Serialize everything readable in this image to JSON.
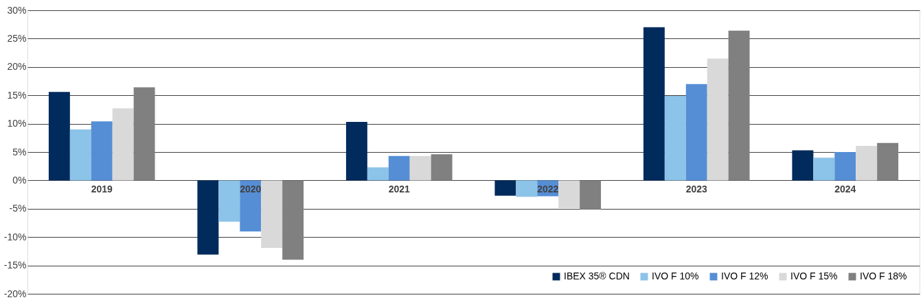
{
  "chart_data": {
    "type": "bar",
    "categories": [
      "2019",
      "2020",
      "2021",
      "2022",
      "2023",
      "2024"
    ],
    "series": [
      {
        "name": "IBEX 35® CDN",
        "color": "#002b5c",
        "values": [
          15.6,
          -13.1,
          10.3,
          -2.7,
          27.0,
          5.3
        ]
      },
      {
        "name": "IVO F 10%",
        "color": "#8cc3e8",
        "values": [
          9.0,
          -7.3,
          2.3,
          -2.9,
          14.9,
          4.0
        ]
      },
      {
        "name": "IVO F 12%",
        "color": "#558ed5",
        "values": [
          10.4,
          -9.0,
          4.3,
          -2.8,
          17.0,
          5.0
        ]
      },
      {
        "name": "IVO F 15%",
        "color": "#d9d9d9",
        "values": [
          12.7,
          -11.9,
          4.3,
          -4.9,
          21.5,
          6.1
        ]
      },
      {
        "name": "IVO F 18%",
        "color": "#808080",
        "values": [
          16.4,
          -14.0,
          4.6,
          -5.1,
          26.4,
          6.6
        ]
      }
    ],
    "ylim": [
      -20,
      30
    ],
    "yticks": [
      {
        "value": -20,
        "label": "-20%"
      },
      {
        "value": -15,
        "label": "-15%"
      },
      {
        "value": -10,
        "label": "-10%"
      },
      {
        "value": -5,
        "label": "-5%"
      },
      {
        "value": 0,
        "label": "0%"
      },
      {
        "value": 5,
        "label": "5%"
      },
      {
        "value": 10,
        "label": "10%"
      },
      {
        "value": 15,
        "label": "15%"
      },
      {
        "value": 20,
        "label": "20%"
      },
      {
        "value": 25,
        "label": "25%"
      },
      {
        "value": 30,
        "label": "30%"
      }
    ],
    "grid": "y",
    "legend": "bottom right"
  }
}
